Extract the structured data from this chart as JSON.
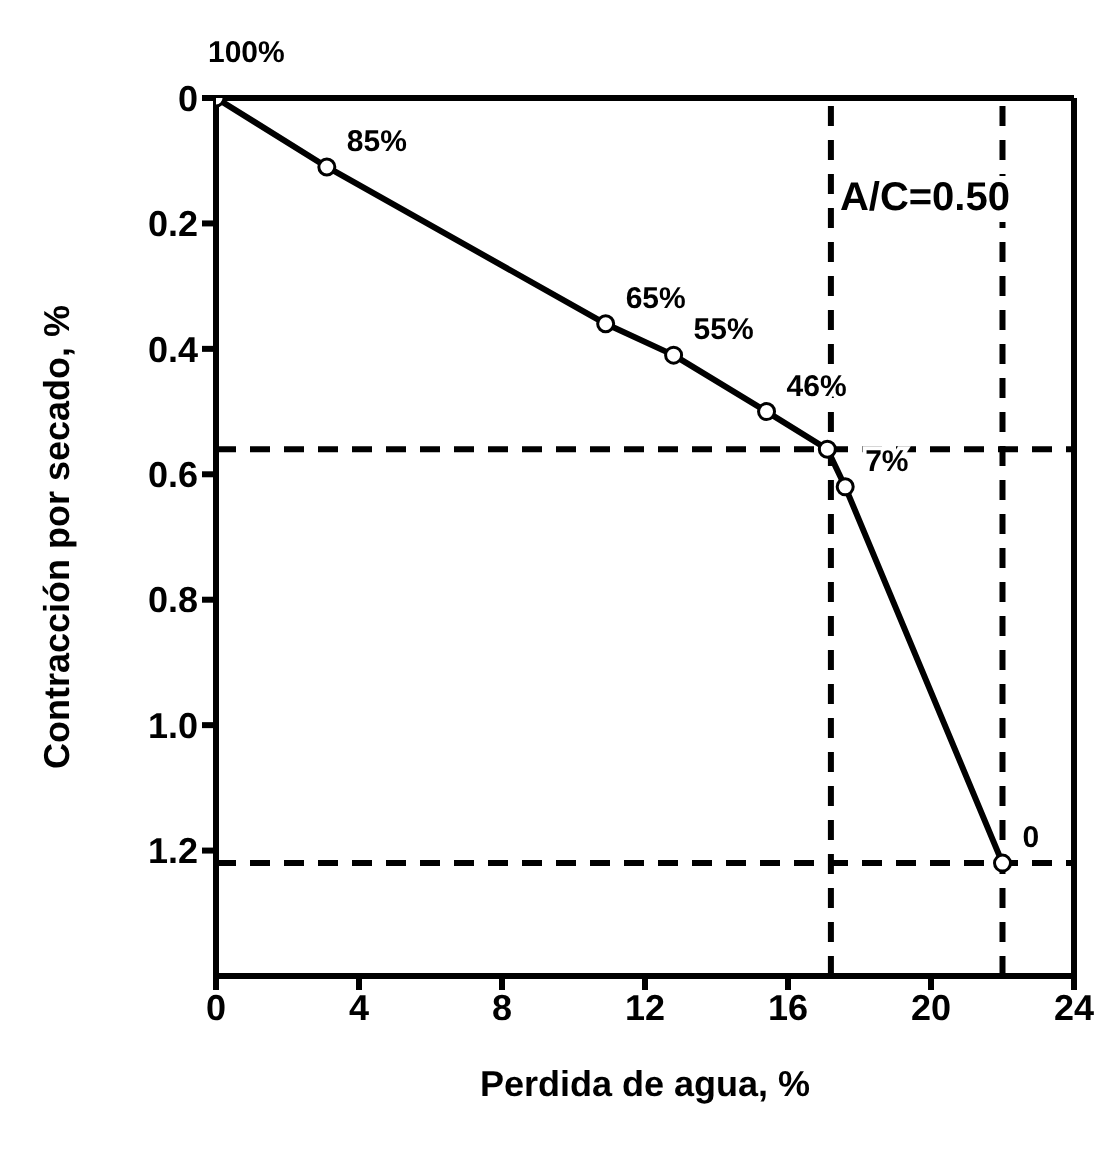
{
  "chart_data": {
    "type": "line",
    "xlabel": "Perdida de agua, %",
    "ylabel": "Contracción por secado, %",
    "annotations": [
      "A/C=0.50",
      {
        "text": "100%",
        "x": 0,
        "y": 0
      },
      {
        "text": "85%",
        "x": 3.1,
        "y": 0.11
      },
      {
        "text": "65%",
        "x": 10.9,
        "y": 0.36
      },
      {
        "text": "55%",
        "x": 12.8,
        "y": 0.41
      },
      {
        "text": "46%",
        "x": 15.4,
        "y": 0.5
      },
      {
        "text": "7%",
        "x": 17.6,
        "y": 0.62
      },
      {
        "text": "0",
        "x": 22.0,
        "y": 1.22
      }
    ],
    "x": [
      0,
      3.1,
      10.9,
      12.8,
      15.4,
      17.1,
      17.6,
      22.0
    ],
    "series": [
      {
        "color": "#000000",
        "values": [
          0,
          0.11,
          0.36,
          0.41,
          0.5,
          0.56,
          0.62,
          1.22
        ]
      }
    ],
    "xlim": [
      0,
      24
    ],
    "xticks": [
      0,
      4,
      8,
      12,
      16,
      20,
      24
    ],
    "ylim": [
      1.4,
      0
    ],
    "yticks": [
      0,
      {
        "value": 0.2,
        "label": "0.2"
      },
      {
        "value": 0.4,
        "label": "0.4"
      },
      {
        "value": 0.6,
        "label": "0.6"
      },
      {
        "value": 0.8,
        "label": "0.8"
      },
      {
        "value": 1,
        "label": "1.0"
      },
      {
        "value": 1.2,
        "label": "1.2"
      }
    ],
    "ref_lines": [
      {
        "axis": "y",
        "value": 0.56,
        "line_style": "dashed",
        "color": "#000000"
      },
      {
        "axis": "x",
        "value": 17.2,
        "line_style": "dashed",
        "color": "#000000"
      },
      {
        "axis": "y",
        "value": 1.22,
        "line_style": "dashed",
        "color": "#000000"
      },
      {
        "axis": "x",
        "value": 22.0,
        "line_style": "dashed",
        "color": "#000000"
      }
    ],
    "marker": "circle",
    "line_style": "solid"
  }
}
